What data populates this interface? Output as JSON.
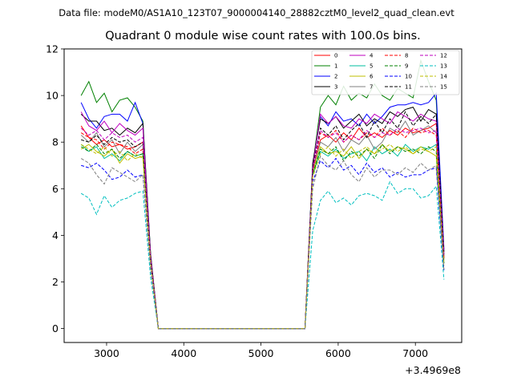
{
  "suptitle": "Data file: modeM0/AS1A10_123T07_9000004140_28882cztM0_level2_quad_clean.evt",
  "chart_data": {
    "type": "line",
    "title": "Quadrant 0 module wise count rates with 100.0s bins.",
    "xlabel": "",
    "ylabel": "",
    "x_offset_label": "+3.4969e8",
    "x_offset": 349690000,
    "xlim": [
      2450,
      7600
    ],
    "ylim": [
      -0.6,
      12.0
    ],
    "xticks": [
      3000,
      4000,
      5000,
      6000,
      7000
    ],
    "yticks": [
      0,
      2,
      4,
      6,
      8,
      10,
      12
    ],
    "grid": false,
    "legend_position": "top-right",
    "x": [
      2670,
      2770,
      2870,
      2970,
      3070,
      3170,
      3270,
      3370,
      3470,
      3570,
      3670,
      3770,
      3870,
      3970,
      4070,
      4170,
      4270,
      4370,
      4470,
      4570,
      4670,
      4770,
      4870,
      4970,
      5070,
      5170,
      5270,
      5370,
      5470,
      5570,
      5670,
      5770,
      5870,
      5970,
      6070,
      6170,
      6270,
      6370,
      6470,
      6570,
      6670,
      6770,
      6870,
      6970,
      7070,
      7170,
      7270,
      7370
    ],
    "series": [
      {
        "name": "0",
        "color": "#ff0000",
        "dash": "solid",
        "values": [
          8.7,
          8.2,
          7.9,
          8.1,
          7.8,
          7.9,
          7.7,
          7.8,
          8.0,
          3.0,
          0,
          0,
          0,
          0,
          0,
          0,
          0,
          0,
          0,
          0,
          0,
          0,
          0,
          0,
          0,
          0,
          0,
          0,
          0,
          0,
          6.8,
          8.1,
          8.3,
          8.0,
          8.4,
          8.1,
          8.6,
          8.2,
          8.4,
          8.2,
          8.5,
          8.3,
          8.6,
          8.4,
          8.5,
          8.6,
          8.8,
          3.0
        ]
      },
      {
        "name": "1",
        "color": "#008000",
        "dash": "solid",
        "values": [
          10.0,
          10.6,
          9.7,
          10.1,
          9.3,
          9.8,
          9.9,
          9.5,
          8.9,
          3.2,
          0,
          0,
          0,
          0,
          0,
          0,
          0,
          0,
          0,
          0,
          0,
          0,
          0,
          0,
          0,
          0,
          0,
          0,
          0,
          0,
          7.0,
          9.5,
          10.0,
          9.6,
          10.4,
          9.8,
          10.1,
          9.9,
          10.5,
          10.0,
          9.8,
          10.3,
          10.1,
          9.9,
          11.5,
          10.6,
          9.8,
          3.1
        ]
      },
      {
        "name": "2",
        "color": "#0000ff",
        "dash": "solid",
        "values": [
          9.7,
          9.0,
          8.6,
          9.1,
          9.2,
          9.2,
          8.9,
          9.7,
          8.8,
          3.1,
          0,
          0,
          0,
          0,
          0,
          0,
          0,
          0,
          0,
          0,
          0,
          0,
          0,
          0,
          0,
          0,
          0,
          0,
          0,
          0,
          7.0,
          9.1,
          8.7,
          9.3,
          8.9,
          9.0,
          8.7,
          9.2,
          8.8,
          9.1,
          9.5,
          9.6,
          9.6,
          9.7,
          9.6,
          9.7,
          10.1,
          3.4
        ]
      },
      {
        "name": "3",
        "color": "#000000",
        "dash": "solid",
        "values": [
          9.2,
          8.9,
          8.9,
          8.5,
          8.6,
          8.3,
          8.6,
          8.4,
          8.8,
          3.2,
          0,
          0,
          0,
          0,
          0,
          0,
          0,
          0,
          0,
          0,
          0,
          0,
          0,
          0,
          0,
          0,
          0,
          0,
          0,
          0,
          7.1,
          9.0,
          8.8,
          9.1,
          8.6,
          8.9,
          9.2,
          8.7,
          9.0,
          8.8,
          9.3,
          9.1,
          9.4,
          9.5,
          8.9,
          9.4,
          9.2,
          3.3
        ]
      },
      {
        "name": "4",
        "color": "#bf00bf",
        "dash": "solid",
        "values": [
          9.3,
          8.7,
          8.5,
          8.9,
          8.4,
          8.8,
          8.5,
          8.3,
          8.6,
          3.1,
          0,
          0,
          0,
          0,
          0,
          0,
          0,
          0,
          0,
          0,
          0,
          0,
          0,
          0,
          0,
          0,
          0,
          0,
          0,
          0,
          6.9,
          9.2,
          8.8,
          9.1,
          8.7,
          8.6,
          9.0,
          8.8,
          9.2,
          9.0,
          8.8,
          9.3,
          9.1,
          8.9,
          9.2,
          9.0,
          8.9,
          3.2
        ]
      },
      {
        "name": "5",
        "color": "#00bf9f",
        "dash": "solid",
        "values": [
          7.9,
          7.6,
          7.8,
          7.3,
          7.5,
          7.2,
          7.6,
          7.4,
          7.5,
          2.9,
          0,
          0,
          0,
          0,
          0,
          0,
          0,
          0,
          0,
          0,
          0,
          0,
          0,
          0,
          0,
          0,
          0,
          0,
          0,
          0,
          6.6,
          7.6,
          7.4,
          7.7,
          7.3,
          7.5,
          7.6,
          7.2,
          7.8,
          7.5,
          7.7,
          7.4,
          7.9,
          7.6,
          7.8,
          7.7,
          7.9,
          2.8
        ]
      },
      {
        "name": "6",
        "color": "#bfbf00",
        "dash": "solid",
        "values": [
          7.7,
          7.9,
          7.6,
          7.4,
          7.7,
          7.1,
          7.5,
          7.3,
          7.4,
          2.8,
          0,
          0,
          0,
          0,
          0,
          0,
          0,
          0,
          0,
          0,
          0,
          0,
          0,
          0,
          0,
          0,
          0,
          0,
          0,
          0,
          6.7,
          7.8,
          7.5,
          7.6,
          7.4,
          7.8,
          7.3,
          7.7,
          7.5,
          7.9,
          7.6,
          7.8,
          7.7,
          7.5,
          7.8,
          7.6,
          7.4,
          2.9
        ]
      },
      {
        "name": "7",
        "color": "#808080",
        "dash": "solid",
        "values": [
          8.3,
          8.0,
          8.4,
          7.8,
          8.1,
          7.5,
          8.0,
          7.6,
          7.9,
          2.9,
          0,
          0,
          0,
          0,
          0,
          0,
          0,
          0,
          0,
          0,
          0,
          0,
          0,
          0,
          0,
          0,
          0,
          0,
          0,
          0,
          6.8,
          8.0,
          7.8,
          8.2,
          7.6,
          8.1,
          7.9,
          8.3,
          7.7,
          8.0,
          8.6,
          8.4,
          8.9,
          8.3,
          8.5,
          8.7,
          8.4,
          3.0
        ]
      },
      {
        "name": "8",
        "color": "#ff0000",
        "dash": "dashed",
        "values": [
          8.4,
          8.2,
          8.1,
          7.7,
          8.0,
          7.9,
          7.8,
          7.5,
          7.7,
          2.9,
          0,
          0,
          0,
          0,
          0,
          0,
          0,
          0,
          0,
          0,
          0,
          0,
          0,
          0,
          0,
          0,
          0,
          0,
          0,
          0,
          6.7,
          8.4,
          8.2,
          8.5,
          8.0,
          8.3,
          8.1,
          8.4,
          8.2,
          8.6,
          8.3,
          8.5,
          8.2,
          8.6,
          8.4,
          8.5,
          8.3,
          3.0
        ]
      },
      {
        "name": "9",
        "color": "#008000",
        "dash": "dashed",
        "values": [
          7.8,
          7.6,
          7.9,
          7.5,
          7.7,
          7.3,
          7.6,
          7.4,
          7.5,
          2.8,
          0,
          0,
          0,
          0,
          0,
          0,
          0,
          0,
          0,
          0,
          0,
          0,
          0,
          0,
          0,
          0,
          0,
          0,
          0,
          0,
          6.6,
          7.7,
          7.5,
          7.8,
          7.2,
          7.6,
          7.4,
          7.7,
          7.3,
          7.9,
          7.5,
          7.8,
          7.6,
          7.7,
          7.5,
          7.8,
          7.6,
          2.8
        ]
      },
      {
        "name": "10",
        "color": "#0000ff",
        "dash": "dashed",
        "values": [
          7.0,
          6.9,
          7.1,
          6.8,
          6.4,
          6.5,
          6.8,
          6.5,
          6.6,
          2.6,
          0,
          0,
          0,
          0,
          0,
          0,
          0,
          0,
          0,
          0,
          0,
          0,
          0,
          0,
          0,
          0,
          0,
          0,
          0,
          0,
          6.3,
          7.2,
          6.9,
          7.3,
          6.8,
          7.0,
          6.6,
          7.1,
          6.7,
          6.9,
          6.5,
          6.7,
          6.5,
          6.6,
          6.6,
          6.8,
          6.9,
          2.5
        ]
      },
      {
        "name": "11",
        "color": "#000000",
        "dash": "dashed",
        "values": [
          8.1,
          8.0,
          8.3,
          7.9,
          8.2,
          8.0,
          8.1,
          7.8,
          8.0,
          3.0,
          0,
          0,
          0,
          0,
          0,
          0,
          0,
          0,
          0,
          0,
          0,
          0,
          0,
          0,
          0,
          0,
          0,
          0,
          0,
          0,
          6.9,
          8.6,
          8.3,
          8.7,
          8.1,
          8.5,
          8.8,
          8.2,
          8.9,
          8.4,
          9.0,
          8.6,
          9.3,
          8.7,
          9.1,
          8.8,
          9.2,
          3.2
        ]
      },
      {
        "name": "12",
        "color": "#bf00bf",
        "dash": "dashed",
        "values": [
          8.6,
          8.3,
          8.5,
          8.1,
          8.4,
          8.2,
          8.3,
          8.0,
          8.2,
          3.0,
          0,
          0,
          0,
          0,
          0,
          0,
          0,
          0,
          0,
          0,
          0,
          0,
          0,
          0,
          0,
          0,
          0,
          0,
          0,
          0,
          6.8,
          8.5,
          8.2,
          8.4,
          8.0,
          8.3,
          8.1,
          8.5,
          8.2,
          8.4,
          8.3,
          8.6,
          8.4,
          8.5,
          8.6,
          8.4,
          8.5,
          3.1
        ]
      },
      {
        "name": "13",
        "color": "#00bfbf",
        "dash": "dashed",
        "values": [
          5.8,
          5.6,
          4.9,
          5.7,
          5.2,
          5.5,
          5.6,
          5.8,
          5.9,
          2.2,
          0,
          0,
          0,
          0,
          0,
          0,
          0,
          0,
          0,
          0,
          0,
          0,
          0,
          0,
          0,
          0,
          0,
          0,
          0,
          0,
          4.2,
          5.5,
          5.9,
          5.4,
          5.6,
          5.3,
          5.7,
          5.8,
          5.7,
          5.5,
          6.3,
          5.8,
          6.0,
          6.0,
          5.6,
          5.7,
          6.1,
          2.1
        ]
      },
      {
        "name": "14",
        "color": "#bfbf00",
        "dash": "dashed",
        "values": [
          7.9,
          7.7,
          7.5,
          7.8,
          7.4,
          7.6,
          7.2,
          7.5,
          7.3,
          2.8,
          0,
          0,
          0,
          0,
          0,
          0,
          0,
          0,
          0,
          0,
          0,
          0,
          0,
          0,
          0,
          0,
          0,
          0,
          0,
          0,
          6.5,
          7.5,
          7.8,
          7.4,
          7.7,
          7.3,
          7.6,
          7.8,
          7.5,
          7.7,
          7.9,
          7.6,
          7.8,
          7.5,
          7.7,
          7.6,
          7.8,
          2.7
        ]
      },
      {
        "name": "15",
        "color": "#808080",
        "dash": "dashed",
        "values": [
          7.3,
          7.1,
          6.6,
          6.2,
          6.9,
          6.7,
          6.5,
          6.3,
          6.6,
          2.6,
          0,
          0,
          0,
          0,
          0,
          0,
          0,
          0,
          0,
          0,
          0,
          0,
          0,
          0,
          0,
          0,
          0,
          0,
          0,
          0,
          6.0,
          7.4,
          7.0,
          6.8,
          7.2,
          6.6,
          6.3,
          6.9,
          6.5,
          6.8,
          6.8,
          6.6,
          6.9,
          6.7,
          7.1,
          6.8,
          7.0,
          2.5
        ]
      }
    ]
  }
}
